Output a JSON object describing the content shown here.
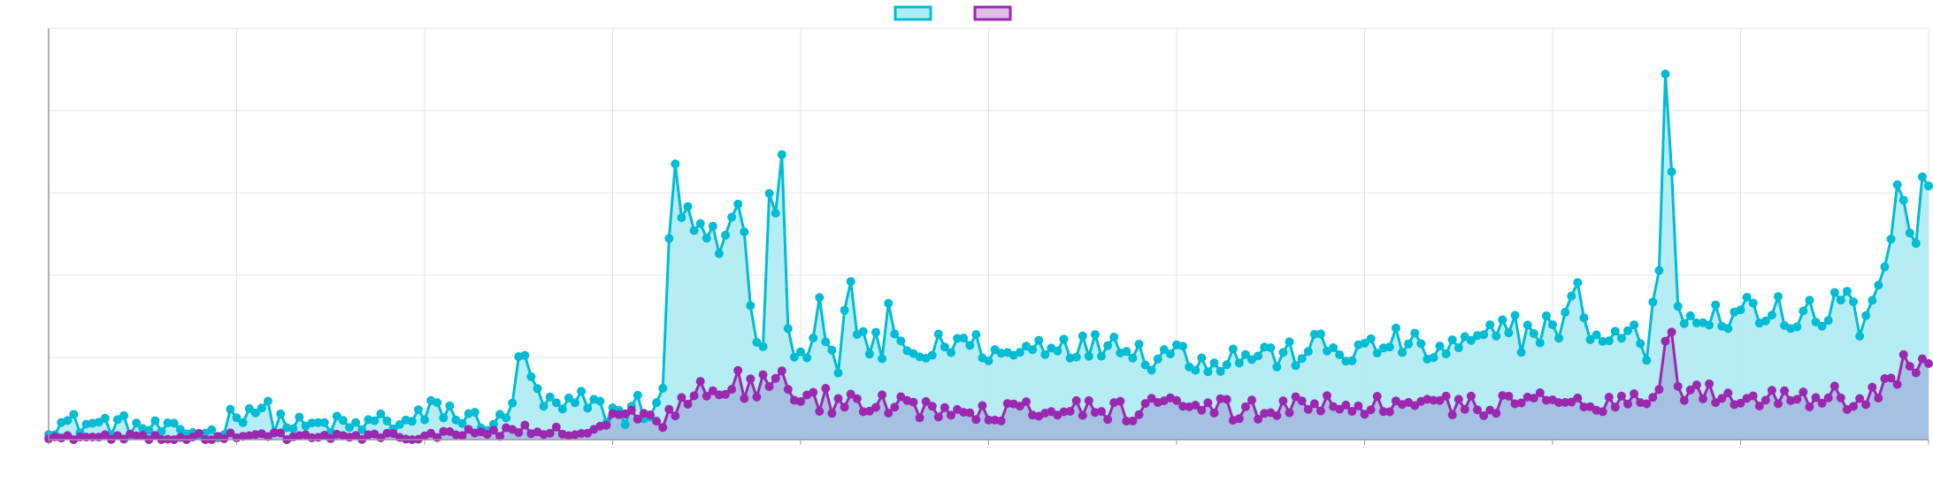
{
  "colors": {
    "series_a_line": "#00bcd4",
    "series_a_fill": "#b2ebf2",
    "series_b_line": "#9c27b0",
    "series_b_fill": "#a4bfe0",
    "grid": "#e6e6e6",
    "axis": "#999999"
  },
  "chart_data": {
    "type": "area",
    "title": "",
    "xlabel": "",
    "ylabel": "",
    "ylim": [
      0,
      500
    ],
    "grid": true,
    "legend": "top-center",
    "x_count": 301,
    "series": [
      {
        "key": "a",
        "anchors": [
          [
            0,
            20
          ],
          [
            12,
            18
          ],
          [
            20,
            12
          ],
          [
            25,
            8
          ],
          [
            27,
            10
          ],
          [
            30,
            8
          ],
          [
            34,
            38
          ],
          [
            37,
            40
          ],
          [
            40,
            25
          ],
          [
            45,
            15
          ],
          [
            50,
            18
          ],
          [
            55,
            15
          ],
          [
            60,
            25
          ],
          [
            63,
            18
          ],
          [
            66,
            25
          ],
          [
            70,
            40
          ],
          [
            74,
            22
          ],
          [
            77,
            25
          ],
          [
            80,
            20
          ],
          [
            82,
            20
          ],
          [
            84,
            140
          ],
          [
            85,
            85
          ],
          [
            86,
            55
          ],
          [
            87,
            50
          ],
          [
            89,
            40
          ],
          [
            92,
            35
          ],
          [
            95,
            45
          ],
          [
            98,
            35
          ],
          [
            99,
            35
          ],
          [
            100,
            35
          ],
          [
            102,
            30
          ],
          [
            104,
            40
          ],
          [
            106,
            40
          ],
          [
            107,
            35
          ],
          [
            109,
            35
          ],
          [
            110,
            215
          ],
          [
            111,
            370
          ],
          [
            112,
            300
          ],
          [
            113,
            250
          ],
          [
            114,
            285
          ],
          [
            115,
            245
          ],
          [
            116,
            255
          ],
          [
            117,
            235
          ],
          [
            118,
            275
          ],
          [
            119,
            215
          ],
          [
            120,
            235
          ],
          [
            121,
            240
          ],
          [
            122,
            320
          ],
          [
            123,
            270
          ],
          [
            124,
            215
          ],
          [
            125,
            145
          ],
          [
            126,
            125
          ],
          [
            127,
            105
          ],
          [
            128,
            290
          ],
          [
            129,
            225
          ],
          [
            130,
            445
          ],
          [
            131,
            135
          ],
          [
            132,
            120
          ],
          [
            133,
            115
          ],
          [
            134,
            110
          ],
          [
            135,
            115
          ],
          [
            136,
            125
          ],
          [
            137,
            160
          ],
          [
            138,
            100
          ],
          [
            139,
            125
          ],
          [
            140,
            70
          ],
          [
            141,
            130
          ],
          [
            142,
            160
          ],
          [
            143,
            195
          ],
          [
            144,
            105
          ],
          [
            145,
            130
          ],
          [
            146,
            95
          ],
          [
            147,
            135
          ],
          [
            148,
            100
          ],
          [
            149,
            155
          ],
          [
            150,
            120
          ],
          [
            155,
            100
          ],
          [
            160,
            120
          ],
          [
            165,
            115
          ],
          [
            170,
            100
          ],
          [
            175,
            115
          ],
          [
            180,
            120
          ],
          [
            185,
            110
          ],
          [
            190,
            125
          ],
          [
            195,
            100
          ],
          [
            200,
            110
          ],
          [
            205,
            95
          ],
          [
            210,
            100
          ],
          [
            215,
            105
          ],
          [
            220,
            100
          ],
          [
            225,
            115
          ],
          [
            230,
            105
          ],
          [
            235,
            110
          ],
          [
            240,
            120
          ],
          [
            245,
            105
          ],
          [
            250,
            110
          ],
          [
            255,
            120
          ],
          [
            258,
            130
          ],
          [
            260,
            155
          ],
          [
            262,
            115
          ],
          [
            264,
            145
          ],
          [
            265,
            115
          ],
          [
            266,
            150
          ],
          [
            267,
            125
          ],
          [
            268,
            130
          ],
          [
            270,
            160
          ],
          [
            272,
            180
          ],
          [
            274,
            130
          ],
          [
            276,
            120
          ],
          [
            278,
            130
          ],
          [
            280,
            120
          ],
          [
            282,
            140
          ],
          [
            284,
            100
          ],
          [
            285,
            155
          ],
          [
            286,
            185
          ],
          [
            287,
            440
          ],
          [
            288,
            425
          ],
          [
            289,
            180
          ],
          [
            290,
            140
          ],
          [
            292,
            160
          ],
          [
            295,
            150
          ],
          [
            300,
            140
          ],
          [
            303,
            175
          ],
          [
            305,
            130
          ],
          [
            307,
            160
          ],
          [
            310,
            145
          ],
          [
            313,
            170
          ],
          [
            315,
            130
          ],
          [
            317,
            165
          ],
          [
            319,
            175
          ],
          [
            320,
            190
          ],
          [
            322,
            135
          ],
          [
            324,
            175
          ],
          [
            325,
            190
          ],
          [
            326,
            225
          ],
          [
            327,
            205
          ],
          [
            328,
            295
          ],
          [
            329,
            300
          ],
          [
            330,
            305
          ],
          [
            331,
            225
          ],
          [
            332,
            250
          ],
          [
            333,
            320
          ],
          [
            334,
            320
          ]
        ],
        "jitter": 18
      },
      {
        "key": "b",
        "anchors": [
          [
            0,
            2
          ],
          [
            20,
            2
          ],
          [
            40,
            4
          ],
          [
            60,
            3
          ],
          [
            70,
            5
          ],
          [
            75,
            8
          ],
          [
            80,
            10
          ],
          [
            84,
            12
          ],
          [
            86,
            8
          ],
          [
            90,
            10
          ],
          [
            92,
            6
          ],
          [
            95,
            8
          ],
          [
            98,
            15
          ],
          [
            100,
            20
          ],
          [
            102,
            30
          ],
          [
            105,
            28
          ],
          [
            108,
            15
          ],
          [
            110,
            25
          ],
          [
            112,
            45
          ],
          [
            114,
            55
          ],
          [
            116,
            70
          ],
          [
            118,
            60
          ],
          [
            120,
            65
          ],
          [
            122,
            75
          ],
          [
            124,
            60
          ],
          [
            126,
            65
          ],
          [
            128,
            70
          ],
          [
            130,
            75
          ],
          [
            132,
            55
          ],
          [
            134,
            50
          ],
          [
            136,
            45
          ],
          [
            138,
            50
          ],
          [
            140,
            40
          ],
          [
            142,
            45
          ],
          [
            150,
            40
          ],
          [
            160,
            40
          ],
          [
            170,
            35
          ],
          [
            180,
            40
          ],
          [
            190,
            35
          ],
          [
            200,
            40
          ],
          [
            210,
            35
          ],
          [
            220,
            40
          ],
          [
            230,
            45
          ],
          [
            240,
            40
          ],
          [
            250,
            40
          ],
          [
            260,
            45
          ],
          [
            270,
            50
          ],
          [
            280,
            45
          ],
          [
            284,
            50
          ],
          [
            286,
            55
          ],
          [
            287,
            120
          ],
          [
            288,
            150
          ],
          [
            289,
            80
          ],
          [
            290,
            60
          ],
          [
            295,
            55
          ],
          [
            300,
            50
          ],
          [
            310,
            55
          ],
          [
            320,
            50
          ],
          [
            325,
            55
          ],
          [
            328,
            75
          ],
          [
            330,
            100
          ],
          [
            332,
            80
          ],
          [
            334,
            90
          ]
        ],
        "jitter": 14
      }
    ]
  }
}
